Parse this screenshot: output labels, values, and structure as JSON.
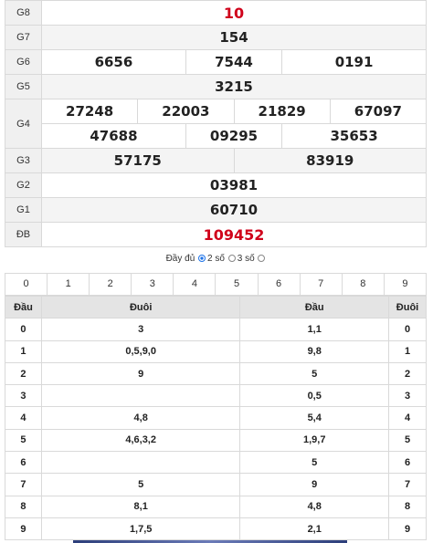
{
  "prizes": [
    {
      "label": "G8",
      "values": [
        "10"
      ],
      "red": true
    },
    {
      "label": "G7",
      "values": [
        "154"
      ]
    },
    {
      "label": "G6",
      "values": [
        "6656",
        "7544",
        "0191"
      ]
    },
    {
      "label": "G5",
      "values": [
        "3215"
      ]
    },
    {
      "label": "G4",
      "row1": [
        "27248",
        "22003",
        "21829",
        "67097"
      ],
      "row2": [
        "47688",
        "09295",
        "35653"
      ]
    },
    {
      "label": "G3",
      "values": [
        "57175",
        "83919"
      ]
    },
    {
      "label": "G2",
      "values": [
        "03981"
      ]
    },
    {
      "label": "G1",
      "values": [
        "60710"
      ]
    },
    {
      "label": "ĐB",
      "values": [
        "109452"
      ],
      "red": true
    }
  ],
  "options": {
    "full": "Đầy đủ",
    "two": "2 số",
    "three": "3 số",
    "selected": "2 số"
  },
  "digits": [
    "0",
    "1",
    "2",
    "3",
    "4",
    "5",
    "6",
    "7",
    "8",
    "9"
  ],
  "loto": {
    "headers": [
      "Đầu",
      "Đuôi",
      "Đầu",
      "Đuôi"
    ],
    "rows": [
      {
        "head": "0",
        "tail_vals": "3",
        "head_vals": "1,1",
        "tail": "0"
      },
      {
        "head": "1",
        "tail_vals": "0,5,9,0",
        "head_vals": "9,8",
        "tail": "1"
      },
      {
        "head": "2",
        "tail_vals": "9",
        "head_vals": "5",
        "tail": "2"
      },
      {
        "head": "3",
        "tail_vals": "",
        "head_vals": "0,5",
        "tail": "3"
      },
      {
        "head": "4",
        "tail_vals": "4,8",
        "head_vals": "5,4",
        "tail": "4"
      },
      {
        "head": "5",
        "tail_vals": "4,6,3,2",
        "head_vals": "1,9,7",
        "tail": "5"
      },
      {
        "head": "6",
        "tail_vals": "",
        "head_vals": "5",
        "tail": "6"
      },
      {
        "head": "7",
        "tail_vals": "5",
        "head_vals": "9",
        "tail": "7"
      },
      {
        "head": "8",
        "tail_vals": "8,1",
        "head_vals": "4,8",
        "tail": "8"
      },
      {
        "head": "9",
        "tail_vals": "1,7,5",
        "head_vals": "2,1",
        "tail": "9"
      }
    ]
  },
  "colors": {
    "red": "#d0021b",
    "radio_blue": "#1e73e8",
    "header_gray": "#e4e4e4"
  }
}
